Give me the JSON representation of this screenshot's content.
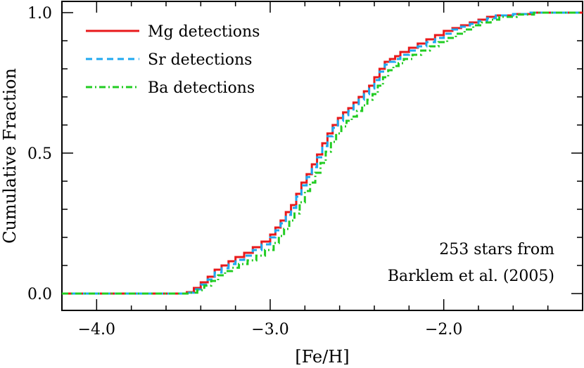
{
  "chart_data": {
    "type": "line",
    "xlabel": "[Fe/H]",
    "ylabel": "Cumulative Fraction",
    "xlim": [
      -4.2,
      -1.2
    ],
    "ylim": [
      -0.06,
      1.04
    ],
    "x_ticks": [
      -4.0,
      -3.0,
      -2.0
    ],
    "x_tick_labels": [
      "−4.0",
      "−3.0",
      "−2.0"
    ],
    "y_ticks": [
      0.0,
      0.5,
      1.0
    ],
    "y_tick_labels": [
      "0.0",
      "0.5",
      "1.0"
    ],
    "legend_position": "top-left",
    "annotation": [
      "253 stars from",
      "Barklem et al. (2005)"
    ],
    "series": [
      {
        "name": "Mg detections",
        "color": "#e8191b",
        "dash": "solid",
        "x": [
          -4.2,
          -3.75,
          -3.48,
          -3.44,
          -3.4,
          -3.36,
          -3.32,
          -3.28,
          -3.24,
          -3.2,
          -3.15,
          -3.1,
          -3.05,
          -3.0,
          -2.97,
          -2.94,
          -2.91,
          -2.88,
          -2.85,
          -2.82,
          -2.79,
          -2.76,
          -2.73,
          -2.7,
          -2.67,
          -2.64,
          -2.61,
          -2.58,
          -2.55,
          -2.52,
          -2.49,
          -2.46,
          -2.43,
          -2.4,
          -2.37,
          -2.34,
          -2.31,
          -2.28,
          -2.25,
          -2.2,
          -2.15,
          -2.1,
          -2.05,
          -2.0,
          -1.95,
          -1.9,
          -1.85,
          -1.8,
          -1.75,
          -1.7,
          -1.6,
          -1.5,
          -1.2
        ],
        "y": [
          0.0,
          0.0,
          0.005,
          0.02,
          0.04,
          0.06,
          0.085,
          0.1,
          0.115,
          0.13,
          0.145,
          0.165,
          0.185,
          0.21,
          0.235,
          0.26,
          0.29,
          0.315,
          0.355,
          0.395,
          0.425,
          0.46,
          0.495,
          0.535,
          0.57,
          0.6,
          0.625,
          0.645,
          0.66,
          0.68,
          0.7,
          0.72,
          0.74,
          0.77,
          0.8,
          0.825,
          0.835,
          0.845,
          0.86,
          0.875,
          0.89,
          0.905,
          0.92,
          0.935,
          0.945,
          0.955,
          0.965,
          0.975,
          0.985,
          0.99,
          0.995,
          1.0,
          1.0
        ]
      },
      {
        "name": "Sr detections",
        "color": "#1ea8f0",
        "dash": "dashed",
        "x": [
          -4.2,
          -3.75,
          -3.48,
          -3.44,
          -3.4,
          -3.36,
          -3.32,
          -3.28,
          -3.24,
          -3.2,
          -3.15,
          -3.1,
          -3.05,
          -3.0,
          -2.97,
          -2.94,
          -2.91,
          -2.88,
          -2.85,
          -2.82,
          -2.79,
          -2.76,
          -2.73,
          -2.7,
          -2.67,
          -2.64,
          -2.61,
          -2.58,
          -2.55,
          -2.52,
          -2.49,
          -2.46,
          -2.43,
          -2.4,
          -2.37,
          -2.34,
          -2.31,
          -2.28,
          -2.25,
          -2.2,
          -2.15,
          -2.1,
          -2.05,
          -2.0,
          -1.95,
          -1.9,
          -1.85,
          -1.8,
          -1.75,
          -1.7,
          -1.6,
          -1.5,
          -1.2
        ],
        "y": [
          0.0,
          0.0,
          0.003,
          0.015,
          0.032,
          0.05,
          0.075,
          0.09,
          0.105,
          0.12,
          0.135,
          0.155,
          0.175,
          0.2,
          0.225,
          0.25,
          0.28,
          0.305,
          0.345,
          0.385,
          0.415,
          0.45,
          0.485,
          0.525,
          0.56,
          0.59,
          0.615,
          0.635,
          0.65,
          0.67,
          0.69,
          0.71,
          0.73,
          0.76,
          0.79,
          0.815,
          0.825,
          0.835,
          0.85,
          0.865,
          0.88,
          0.895,
          0.91,
          0.925,
          0.94,
          0.95,
          0.96,
          0.97,
          0.98,
          0.99,
          0.995,
          1.0,
          1.0
        ]
      },
      {
        "name": "Ba detections",
        "color": "#22cc22",
        "dash": "dashdot",
        "x": [
          -4.2,
          -3.75,
          -3.46,
          -3.42,
          -3.38,
          -3.34,
          -3.3,
          -3.26,
          -3.22,
          -3.18,
          -3.13,
          -3.08,
          -3.03,
          -2.98,
          -2.95,
          -2.92,
          -2.89,
          -2.86,
          -2.83,
          -2.8,
          -2.77,
          -2.74,
          -2.71,
          -2.68,
          -2.65,
          -2.62,
          -2.59,
          -2.56,
          -2.53,
          -2.5,
          -2.47,
          -2.44,
          -2.41,
          -2.38,
          -2.35,
          -2.32,
          -2.29,
          -2.26,
          -2.23,
          -2.18,
          -2.13,
          -2.08,
          -2.03,
          -1.98,
          -1.93,
          -1.88,
          -1.83,
          -1.78,
          -1.73,
          -1.68,
          -1.58,
          -1.48,
          -1.2
        ],
        "y": [
          0.0,
          0.0,
          0.003,
          0.012,
          0.028,
          0.045,
          0.065,
          0.08,
          0.092,
          0.105,
          0.118,
          0.135,
          0.155,
          0.18,
          0.205,
          0.23,
          0.26,
          0.285,
          0.325,
          0.365,
          0.395,
          0.43,
          0.465,
          0.505,
          0.54,
          0.57,
          0.595,
          0.615,
          0.63,
          0.65,
          0.67,
          0.69,
          0.71,
          0.74,
          0.77,
          0.795,
          0.81,
          0.82,
          0.835,
          0.85,
          0.865,
          0.88,
          0.895,
          0.91,
          0.925,
          0.94,
          0.955,
          0.965,
          0.975,
          0.985,
          0.993,
          1.0,
          1.0
        ]
      }
    ]
  }
}
